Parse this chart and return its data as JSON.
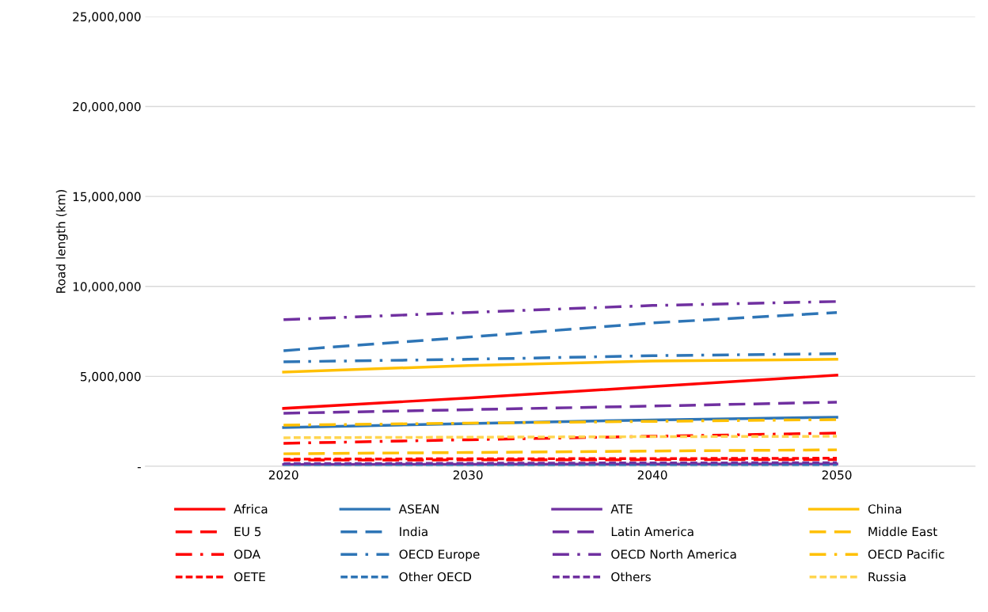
{
  "chart_data": {
    "type": "line",
    "ylabel": "Road length (km)",
    "categories": [
      "2020",
      "2030",
      "2040",
      "2050"
    ],
    "ylim": [
      0,
      25000000
    ],
    "yticks": [
      {
        "value": 0,
        "label": "-"
      },
      {
        "value": 5000000,
        "label": "5,000,000"
      },
      {
        "value": 10000000,
        "label": "10,000,000"
      },
      {
        "value": 15000000,
        "label": "15,000,000"
      },
      {
        "value": 20000000,
        "label": "20,000,000"
      },
      {
        "value": 25000000,
        "label": "25,000,000"
      }
    ],
    "grid": "y",
    "legend": "bottom",
    "marker": "none",
    "series": [
      {
        "name": "Africa",
        "color": "#ff0000",
        "line_style": "solid",
        "values": [
          3220000,
          3800000,
          4430000,
          5070000
        ]
      },
      {
        "name": "ASEAN",
        "color": "#2e75b6",
        "line_style": "solid",
        "values": [
          2160000,
          2380000,
          2580000,
          2730000
        ]
      },
      {
        "name": "ATE",
        "color": "#7030a0",
        "line_style": "solid",
        "values": [
          100000,
          110000,
          120000,
          130000
        ]
      },
      {
        "name": "China",
        "color": "#ffc000",
        "line_style": "solid",
        "values": [
          5240000,
          5600000,
          5850000,
          5950000
        ]
      },
      {
        "name": "EU 5",
        "color": "#ff0000",
        "line_style": "dashed",
        "values": [
          350000,
          360000,
          370000,
          380000
        ]
      },
      {
        "name": "India",
        "color": "#2e75b6",
        "line_style": "dashed",
        "values": [
          6430000,
          7180000,
          7970000,
          8550000
        ]
      },
      {
        "name": "Latin America",
        "color": "#7030a0",
        "line_style": "dashed",
        "values": [
          2950000,
          3150000,
          3350000,
          3570000
        ]
      },
      {
        "name": "Middle East",
        "color": "#ffc000",
        "line_style": "dashed",
        "values": [
          700000,
          770000,
          850000,
          920000
        ]
      },
      {
        "name": "ODA",
        "color": "#ff0000",
        "line_style": "dashdot",
        "values": [
          1280000,
          1480000,
          1670000,
          1850000
        ]
      },
      {
        "name": "OECD Europe",
        "color": "#2e75b6",
        "line_style": "dashdot",
        "values": [
          5810000,
          5950000,
          6150000,
          6260000
        ]
      },
      {
        "name": "OECD North America",
        "color": "#7030a0",
        "line_style": "dashdot",
        "values": [
          8150000,
          8550000,
          8940000,
          9160000
        ]
      },
      {
        "name": "OECD Pacific",
        "color": "#ffc000",
        "line_style": "dashdot",
        "values": [
          2290000,
          2400000,
          2500000,
          2600000
        ]
      },
      {
        "name": "OETE",
        "color": "#ff0000",
        "line_style": "dotted",
        "values": [
          400000,
          420000,
          430000,
          450000
        ]
      },
      {
        "name": "Other OECD",
        "color": "#2e75b6",
        "line_style": "dotted",
        "values": [
          50000,
          50000,
          60000,
          60000
        ]
      },
      {
        "name": "Others",
        "color": "#7030a0",
        "line_style": "dotted",
        "values": [
          150000,
          170000,
          190000,
          200000
        ]
      },
      {
        "name": "Russia",
        "color": "#ffd54f",
        "line_style": "dotted",
        "values": [
          1590000,
          1620000,
          1650000,
          1670000
        ]
      }
    ]
  }
}
